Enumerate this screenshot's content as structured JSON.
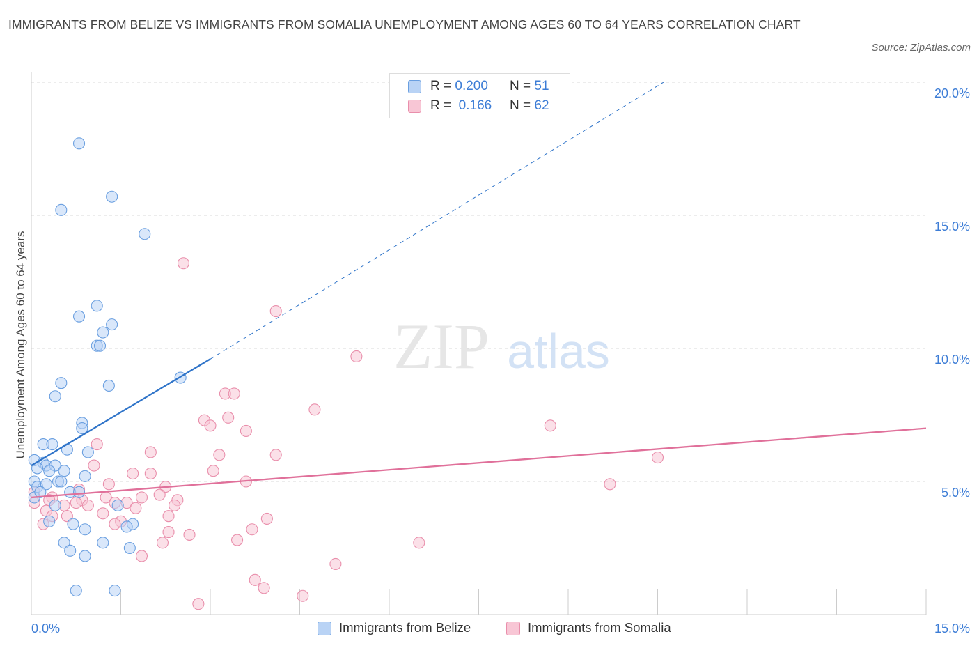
{
  "title": "IMMIGRANTS FROM BELIZE VS IMMIGRANTS FROM SOMALIA UNEMPLOYMENT AMONG AGES 60 TO 64 YEARS CORRELATION CHART",
  "source": "Source: ZipAtlas.com",
  "watermark": {
    "zip": "ZIP",
    "atlas": "atlas"
  },
  "legend": {
    "rows": [
      {
        "r_label": "R = ",
        "r_value": "0.200",
        "n_label": "N = ",
        "n_value": "51"
      },
      {
        "r_label": "R = ",
        "r_value": "0.166",
        "n_label": "N = ",
        "n_value": "62"
      }
    ]
  },
  "colors": {
    "belize_fill": "#b9d3f5",
    "belize_stroke": "#6a9fe0",
    "belize_line": "#2f74c9",
    "somalia_fill": "#f8c6d5",
    "somalia_stroke": "#e98eab",
    "somalia_line": "#e0709a",
    "grid": "#d9d9d9",
    "axis_text": "#3d7dd6"
  },
  "chart_data": {
    "type": "scatter",
    "title": "IMMIGRANTS FROM BELIZE VS IMMIGRANTS FROM SOMALIA UNEMPLOYMENT AMONG AGES 60 TO 64 YEARS CORRELATION CHART",
    "xlabel": "",
    "ylabel": "Unemployment Among Ages 60 to 64 years",
    "xlim": [
      0,
      15
    ],
    "ylim": [
      0,
      20
    ],
    "x_tick_labels": [
      "0.0%",
      "15.0%"
    ],
    "y_ticks": [
      5,
      10,
      15,
      20
    ],
    "y_tick_labels": [
      "5.0%",
      "10.0%",
      "15.0%",
      "20.0%"
    ],
    "grid": true,
    "legend_position": "bottom",
    "series": [
      {
        "name": "Immigrants from Belize",
        "R": 0.2,
        "N": 51,
        "trend": {
          "x": [
            0.0,
            3.0
          ],
          "y": [
            5.6,
            9.6
          ],
          "dashed_to": {
            "x": 10.6,
            "y": 20.0
          }
        },
        "points": [
          [
            0.8,
            17.7
          ],
          [
            1.35,
            15.7
          ],
          [
            0.5,
            15.2
          ],
          [
            1.9,
            14.3
          ],
          [
            1.1,
            11.6
          ],
          [
            0.8,
            11.2
          ],
          [
            1.35,
            10.9
          ],
          [
            1.2,
            10.6
          ],
          [
            1.1,
            10.1
          ],
          [
            1.15,
            10.1
          ],
          [
            2.5,
            8.9
          ],
          [
            0.5,
            8.7
          ],
          [
            1.3,
            8.6
          ],
          [
            0.4,
            8.2
          ],
          [
            0.85,
            7.2
          ],
          [
            0.85,
            7.0
          ],
          [
            0.2,
            6.4
          ],
          [
            0.35,
            6.4
          ],
          [
            0.95,
            6.1
          ],
          [
            0.6,
            6.2
          ],
          [
            0.05,
            5.8
          ],
          [
            0.2,
            5.7
          ],
          [
            0.25,
            5.6
          ],
          [
            0.4,
            5.6
          ],
          [
            0.1,
            5.5
          ],
          [
            0.3,
            5.4
          ],
          [
            0.55,
            5.4
          ],
          [
            0.9,
            5.2
          ],
          [
            0.05,
            5.0
          ],
          [
            0.45,
            5.0
          ],
          [
            0.5,
            5.0
          ],
          [
            0.1,
            4.8
          ],
          [
            0.25,
            4.9
          ],
          [
            0.05,
            4.4
          ],
          [
            0.65,
            4.6
          ],
          [
            0.4,
            4.1
          ],
          [
            1.45,
            4.1
          ],
          [
            0.3,
            3.5
          ],
          [
            0.7,
            3.4
          ],
          [
            1.7,
            3.4
          ],
          [
            0.9,
            3.2
          ],
          [
            1.6,
            3.3
          ],
          [
            0.55,
            2.7
          ],
          [
            1.2,
            2.7
          ],
          [
            0.65,
            2.4
          ],
          [
            1.65,
            2.5
          ],
          [
            0.9,
            2.2
          ],
          [
            0.75,
            0.9
          ],
          [
            1.4,
            0.9
          ],
          [
            0.15,
            4.6
          ],
          [
            0.8,
            4.6
          ]
        ]
      },
      {
        "name": "Immigrants from Somalia",
        "R": 0.166,
        "N": 62,
        "trend": {
          "x": [
            0.0,
            15.0
          ],
          "y": [
            4.4,
            7.0
          ]
        },
        "points": [
          [
            2.55,
            13.2
          ],
          [
            4.1,
            11.4
          ],
          [
            5.45,
            9.7
          ],
          [
            3.25,
            8.3
          ],
          [
            3.4,
            8.3
          ],
          [
            4.75,
            7.7
          ],
          [
            3.3,
            7.4
          ],
          [
            2.9,
            7.3
          ],
          [
            3.0,
            7.1
          ],
          [
            3.6,
            6.9
          ],
          [
            8.7,
            7.1
          ],
          [
            1.1,
            6.4
          ],
          [
            2.0,
            6.1
          ],
          [
            3.15,
            6.0
          ],
          [
            4.1,
            6.0
          ],
          [
            10.5,
            5.9
          ],
          [
            1.05,
            5.6
          ],
          [
            1.7,
            5.3
          ],
          [
            3.05,
            5.4
          ],
          [
            2.0,
            5.3
          ],
          [
            1.3,
            4.9
          ],
          [
            3.6,
            5.0
          ],
          [
            9.7,
            4.9
          ],
          [
            2.25,
            4.8
          ],
          [
            0.8,
            4.7
          ],
          [
            0.05,
            4.6
          ],
          [
            2.15,
            4.5
          ],
          [
            0.35,
            4.4
          ],
          [
            1.85,
            4.4
          ],
          [
            1.25,
            4.4
          ],
          [
            0.85,
            4.3
          ],
          [
            2.45,
            4.3
          ],
          [
            1.4,
            4.2
          ],
          [
            0.55,
            4.1
          ],
          [
            1.6,
            4.2
          ],
          [
            0.75,
            4.2
          ],
          [
            2.4,
            4.1
          ],
          [
            0.95,
            4.1
          ],
          [
            1.75,
            4.0
          ],
          [
            0.25,
            3.9
          ],
          [
            1.2,
            3.8
          ],
          [
            0.35,
            3.7
          ],
          [
            0.6,
            3.7
          ],
          [
            2.3,
            3.7
          ],
          [
            3.95,
            3.6
          ],
          [
            1.5,
            3.5
          ],
          [
            1.4,
            3.4
          ],
          [
            0.2,
            3.4
          ],
          [
            3.7,
            3.2
          ],
          [
            2.3,
            3.1
          ],
          [
            2.65,
            3.0
          ],
          [
            3.45,
            2.8
          ],
          [
            2.2,
            2.7
          ],
          [
            6.5,
            2.7
          ],
          [
            1.85,
            2.2
          ],
          [
            5.1,
            1.9
          ],
          [
            3.75,
            1.3
          ],
          [
            3.9,
            1.0
          ],
          [
            4.55,
            0.7
          ],
          [
            2.8,
            0.4
          ],
          [
            0.05,
            4.2
          ],
          [
            0.3,
            4.3
          ]
        ]
      }
    ]
  }
}
